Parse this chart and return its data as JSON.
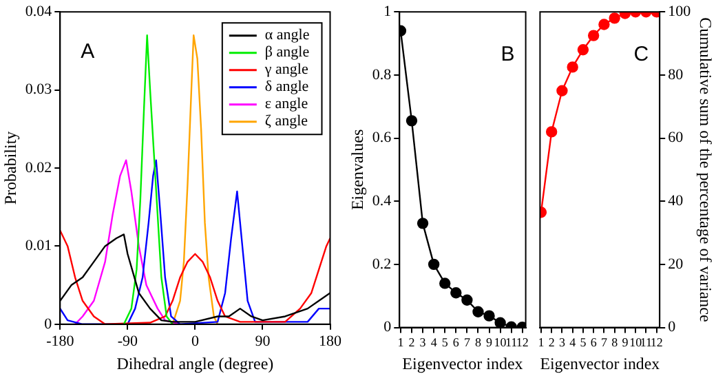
{
  "chart_data": [
    {
      "type": "line",
      "xlabel": "Dihedral angle (degree)",
      "ylabel": "Probability",
      "annotations": [
        "A"
      ],
      "xlim": [
        -180,
        180
      ],
      "xticks": [
        -180,
        -90,
        0,
        90,
        180
      ],
      "ylim": [
        0,
        0.04
      ],
      "yticks": [
        0,
        0.01,
        0.02,
        0.03,
        0.04
      ],
      "grid": false,
      "legend": "top right",
      "marker": "none",
      "line_style": "solid",
      "series": [
        {
          "name": "α angle",
          "color": "#000000",
          "x": [
            -180,
            -165,
            -150,
            -135,
            -120,
            -105,
            -95,
            -90,
            -75,
            -60,
            -45,
            -30,
            0,
            30,
            45,
            60,
            75,
            90,
            120,
            150,
            165,
            180
          ],
          "values": [
            0.003,
            0.005,
            0.006,
            0.008,
            0.01,
            0.011,
            0.0115,
            0.009,
            0.004,
            0.002,
            0.0005,
            0.0003,
            0.0003,
            0.001,
            0.001,
            0.002,
            0.001,
            0.0005,
            0.001,
            0.002,
            0.003,
            0.004
          ]
        },
        {
          "name": "β angle",
          "color": "#00ee00",
          "x": [
            -95,
            -85,
            -78,
            -73,
            -68,
            -64,
            -60,
            -55,
            -50,
            -45,
            -38,
            -30
          ],
          "values": [
            0,
            0.002,
            0.007,
            0.016,
            0.028,
            0.037,
            0.03,
            0.022,
            0.014,
            0.006,
            0.001,
            0
          ]
        },
        {
          "name": "γ angle",
          "color": "#ff0000",
          "x": [
            -180,
            -170,
            -160,
            -150,
            -135,
            -120,
            -60,
            -40,
            -30,
            -20,
            -10,
            0,
            10,
            20,
            30,
            40,
            60,
            120,
            140,
            155,
            165,
            175,
            180
          ],
          "values": [
            0.012,
            0.01,
            0.006,
            0.003,
            0.001,
            0,
            0.0002,
            0.001,
            0.003,
            0.006,
            0.008,
            0.009,
            0.008,
            0.006,
            0.003,
            0.001,
            0.0003,
            0.0003,
            0.002,
            0.004,
            0.007,
            0.01,
            0.011
          ]
        },
        {
          "name": "δ angle",
          "color": "#0000ff",
          "x": [
            -180,
            -170,
            -150,
            -90,
            -80,
            -70,
            -62,
            -56,
            -52,
            -47,
            -40,
            -32,
            -20,
            30,
            40,
            48,
            56,
            62,
            70,
            80,
            150,
            165,
            180
          ],
          "values": [
            0.002,
            0.0005,
            0,
            0,
            0.002,
            0.006,
            0.013,
            0.019,
            0.021,
            0.015,
            0.006,
            0.001,
            0,
            0.0003,
            0.004,
            0.011,
            0.017,
            0.011,
            0.003,
            0.0003,
            0.0003,
            0.002,
            0.002
          ]
        },
        {
          "name": "ε angle",
          "color": "#ff00ff",
          "x": [
            -160,
            -150,
            -135,
            -120,
            -110,
            -100,
            -92,
            -85,
            -75,
            -65,
            -50,
            -40,
            -20
          ],
          "values": [
            0,
            0.001,
            0.003,
            0.008,
            0.014,
            0.019,
            0.021,
            0.017,
            0.01,
            0.005,
            0.002,
            0.0005,
            0
          ]
        },
        {
          "name": "ζ angle",
          "color": "#ffa500",
          "x": [
            -30,
            -20,
            -15,
            -10,
            -5,
            -2,
            3,
            8,
            13,
            18,
            25,
            30
          ],
          "values": [
            0,
            0.003,
            0.008,
            0.018,
            0.03,
            0.037,
            0.034,
            0.025,
            0.013,
            0.006,
            0.001,
            0
          ]
        }
      ]
    },
    {
      "type": "line",
      "xlabel": "Eigenvector index",
      "ylabel": "Eigenvalues",
      "annotations": [
        "B"
      ],
      "xlim": [
        0.9,
        12.3
      ],
      "xticks": [
        1,
        2,
        3,
        4,
        5,
        6,
        7,
        8,
        9,
        10,
        11,
        12
      ],
      "ylim": [
        0,
        1
      ],
      "yticks": [
        0,
        0.2,
        0.4,
        0.6,
        0.8,
        1
      ],
      "grid": false,
      "marker": "circle",
      "line_style": "solid",
      "series": [
        {
          "color": "#000000",
          "x": [
            1,
            2,
            3,
            4,
            5,
            6,
            7,
            8,
            9,
            10,
            11,
            12
          ],
          "values": [
            0.94,
            0.655,
            0.33,
            0.2,
            0.14,
            0.11,
            0.087,
            0.05,
            0.037,
            0.015,
            0.002,
            0.001
          ]
        }
      ]
    },
    {
      "type": "line",
      "xlabel": "Eigenvector index",
      "y2label": "Cumulative sum of the percentage of variance",
      "annotations": [
        "C"
      ],
      "xlim": [
        0.9,
        12.3
      ],
      "xticks": [
        1,
        2,
        3,
        4,
        5,
        6,
        7,
        8,
        9,
        10,
        11,
        12
      ],
      "y2lim": [
        0,
        100
      ],
      "y2ticks": [
        0,
        20,
        40,
        60,
        80,
        100
      ],
      "grid": false,
      "marker": "circle",
      "line_style": "solid",
      "series": [
        {
          "axis": "y2",
          "color": "#ff0000",
          "x": [
            1,
            2,
            3,
            4,
            5,
            6,
            7,
            8,
            9,
            10,
            11,
            12
          ],
          "values": [
            36.5,
            62,
            75,
            82.5,
            88,
            92.5,
            96,
            98,
            99.5,
            100,
            100,
            100
          ]
        }
      ]
    }
  ]
}
